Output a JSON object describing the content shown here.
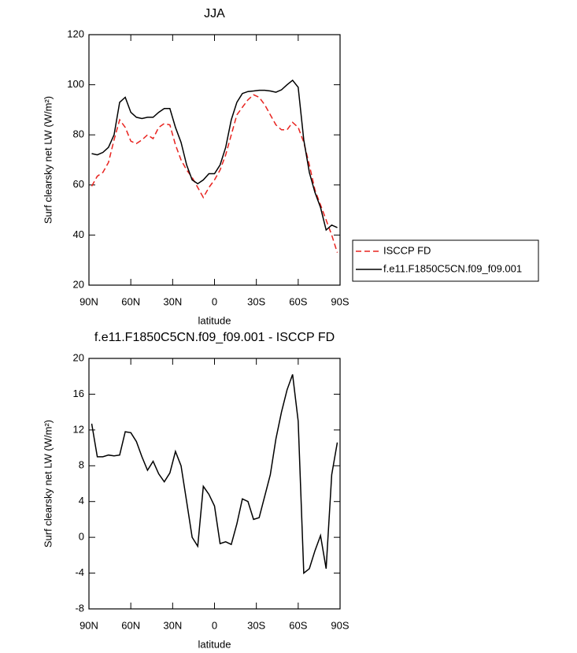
{
  "chart_data": [
    {
      "type": "line",
      "title": "JJA",
      "xlabel": "latitude",
      "ylabel": "Surf clearsky net LW (W/m²)",
      "x": [
        88,
        84,
        80,
        76,
        72,
        68,
        64,
        60,
        56,
        52,
        48,
        44,
        40,
        36,
        32,
        28,
        24,
        20,
        16,
        12,
        8,
        4,
        0,
        -4,
        -8,
        -12,
        -16,
        -20,
        -24,
        -28,
        -32,
        -36,
        -40,
        -44,
        -48,
        -52,
        -56,
        -60,
        -64,
        -68,
        -72,
        -76,
        -80,
        -84,
        -88
      ],
      "series": [
        {
          "name": "ISCCP FD",
          "color": "#e8231f",
          "style": "dashed",
          "values": [
            59.5,
            63.5,
            65,
            69,
            78,
            86,
            83,
            77.5,
            76.5,
            78,
            80,
            78.5,
            83,
            84.5,
            84,
            76,
            70,
            66,
            63,
            59,
            55,
            59,
            62,
            66,
            72,
            80,
            88,
            91,
            94,
            96,
            95,
            92,
            88,
            84,
            82,
            82,
            85,
            83,
            77,
            68,
            58,
            52,
            46,
            40,
            33
          ]
        },
        {
          "name": "f.e11.F1850C5CN.f09_f09.001",
          "color": "#000000",
          "style": "solid",
          "values": [
            72.5,
            72,
            73,
            75,
            80,
            93,
            95,
            89,
            87,
            86.5,
            87,
            87,
            89,
            90.5,
            90.5,
            83,
            77,
            68,
            62,
            60.5,
            62,
            64.5,
            64.5,
            68,
            75,
            86,
            93,
            96.5,
            97.3,
            97.5,
            97.8,
            97.8,
            97.5,
            97,
            98,
            100,
            101.8,
            99,
            78,
            65,
            57,
            51,
            42,
            44,
            43
          ]
        }
      ],
      "xlim": [
        90,
        -90
      ],
      "xticks": [
        {
          "value": 90,
          "label": "90N"
        },
        {
          "value": 60,
          "label": "60N"
        },
        {
          "value": 30,
          "label": "30N"
        },
        0,
        {
          "value": -30,
          "label": "30S"
        },
        {
          "value": -60,
          "label": "60S"
        },
        {
          "value": -90,
          "label": "90S"
        }
      ],
      "ylim": [
        20,
        120
      ],
      "yticks": [
        20,
        40,
        60,
        80,
        100,
        120
      ],
      "legend": "right-bottom-outside"
    },
    {
      "type": "line",
      "title": "f.e11.F1850C5CN.f09_f09.001 - ISCCP FD",
      "xlabel": "latitude",
      "ylabel": "Surf clearsky net LW (W/m²)",
      "x": [
        88,
        84,
        80,
        76,
        72,
        68,
        64,
        60,
        56,
        52,
        48,
        44,
        40,
        36,
        32,
        28,
        24,
        20,
        16,
        12,
        8,
        4,
        0,
        -4,
        -8,
        -12,
        -16,
        -20,
        -24,
        -28,
        -32,
        -36,
        -40,
        -44,
        -48,
        -52,
        -56,
        -60,
        -64,
        -68,
        -72,
        -76,
        -80,
        -84,
        -88
      ],
      "series": [
        {
          "color": "#000000",
          "style": "solid",
          "values": [
            12.7,
            9,
            9,
            9.2,
            9.1,
            9.2,
            11.8,
            11.7,
            10.7,
            9,
            7.5,
            8.5,
            7.1,
            6.2,
            7.2,
            9.6,
            8,
            4,
            0,
            -1,
            5.7,
            4.8,
            3.5,
            -0.7,
            -0.5,
            -0.8,
            1.5,
            4.3,
            4,
            2,
            2.2,
            4.6,
            7,
            11,
            14,
            16.5,
            18.2,
            13,
            -4,
            -3.5,
            -1.5,
            0.2,
            -3.5,
            7,
            10.6
          ]
        }
      ],
      "xlim": [
        90,
        -90
      ],
      "xticks": [
        {
          "value": 90,
          "label": "90N"
        },
        {
          "value": 60,
          "label": "60N"
        },
        {
          "value": 30,
          "label": "30N"
        },
        0,
        {
          "value": -30,
          "label": "30S"
        },
        {
          "value": -60,
          "label": "60S"
        },
        {
          "value": -90,
          "label": "90S"
        }
      ],
      "ylim": [
        -8,
        20
      ],
      "yticks": [
        -8,
        -4,
        0,
        4,
        8,
        12,
        16,
        20
      ]
    }
  ]
}
